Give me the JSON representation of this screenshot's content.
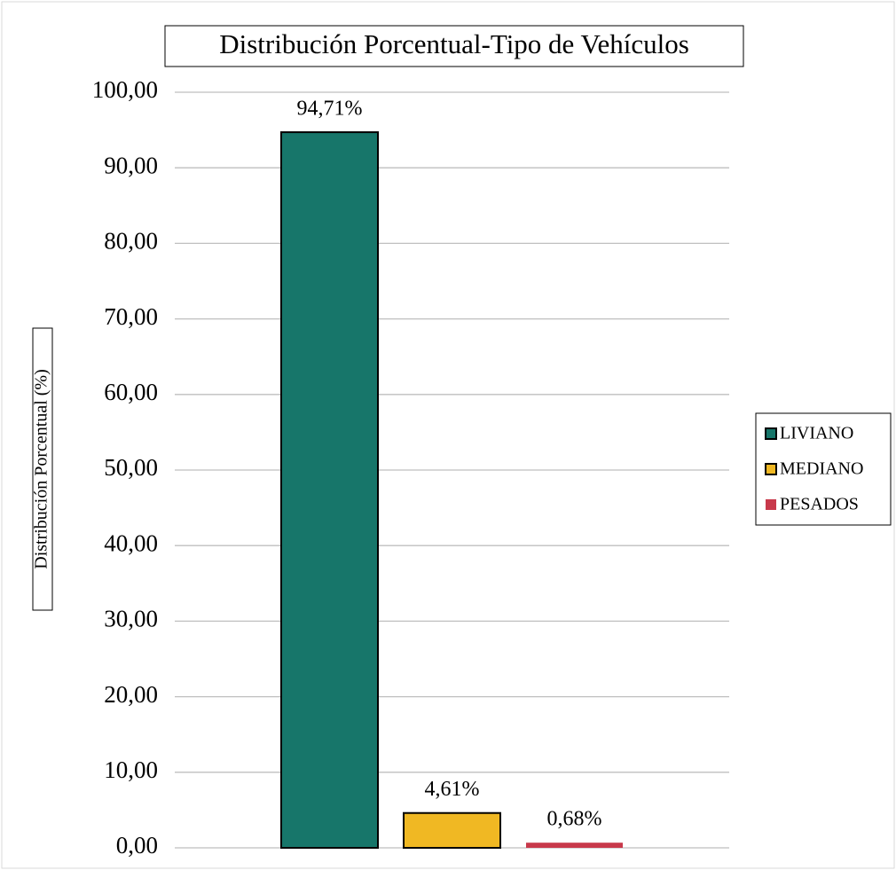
{
  "chart_data": {
    "type": "bar",
    "title": "Distribución Porcentual-Tipo de Vehículos",
    "ylabel": "Distribución Porcentual (%)",
    "categories": [
      null
    ],
    "series": [
      {
        "name": "LIVIANO",
        "color": "#17766a",
        "edgecolor": "#000000",
        "values": [
          94.71
        ],
        "value_labels": [
          "94,71%"
        ]
      },
      {
        "name": "MEDIANO",
        "color": "#f0b823",
        "edgecolor": "#000000",
        "values": [
          4.61
        ],
        "value_labels": [
          "4,61%"
        ]
      },
      {
        "name": "PESADOS",
        "color": "#c8394b",
        "values": [
          0.68
        ],
        "value_labels": [
          "0,68%"
        ]
      }
    ],
    "ylim": [
      0,
      100
    ],
    "yticks": [
      {
        "value": 0,
        "label": "0,00"
      },
      {
        "value": 10,
        "label": "10,00"
      },
      {
        "value": 20,
        "label": "20,00"
      },
      {
        "value": 30,
        "label": "30,00"
      },
      {
        "value": 40,
        "label": "40,00"
      },
      {
        "value": 50,
        "label": "50,00"
      },
      {
        "value": 60,
        "label": "60,00"
      },
      {
        "value": 70,
        "label": "70,00"
      },
      {
        "value": 80,
        "label": "80,00"
      },
      {
        "value": 90,
        "label": "90,00"
      },
      {
        "value": 100,
        "label": "100,00"
      }
    ],
    "grid": true,
    "legend": "right"
  }
}
